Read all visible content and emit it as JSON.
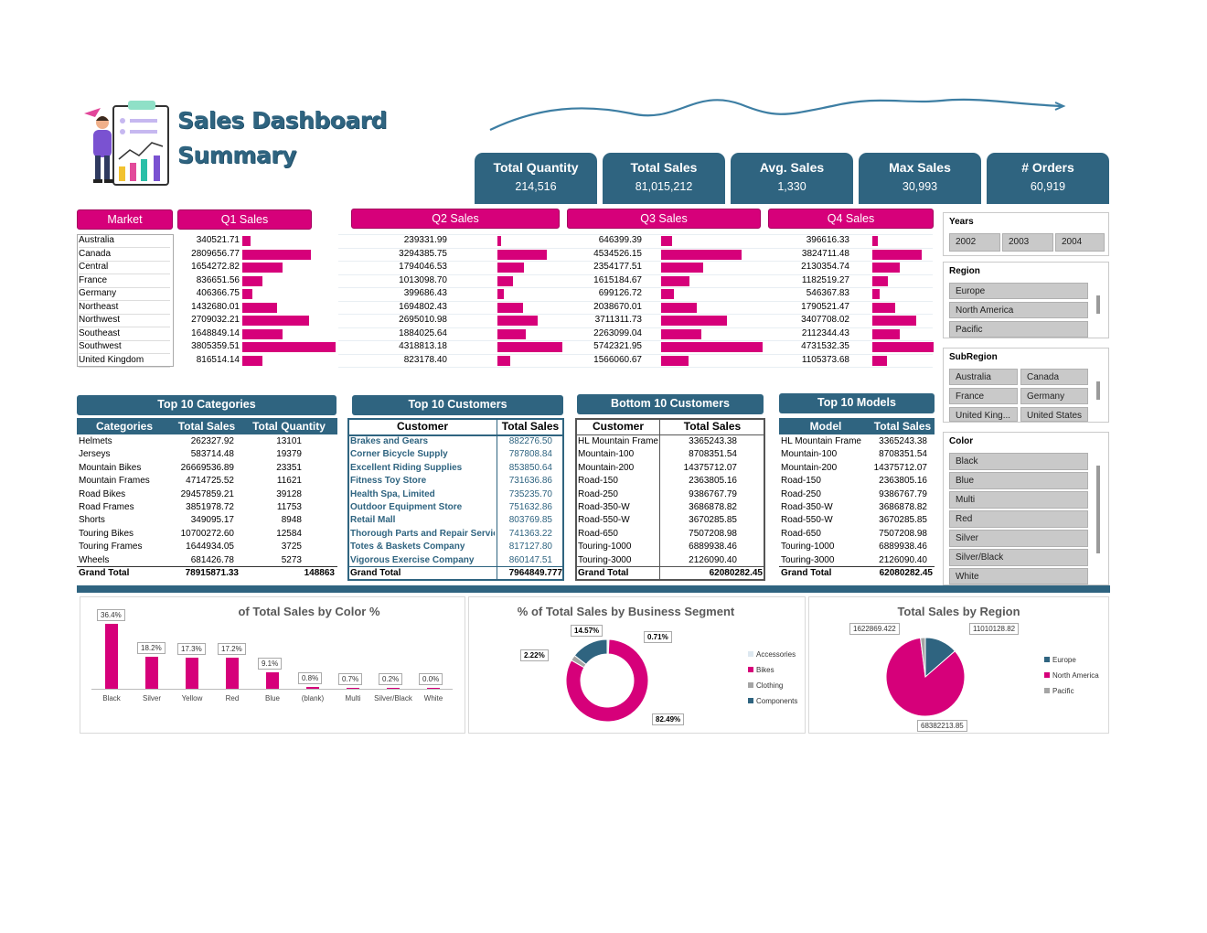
{
  "header": {
    "title_line1": "Sales Dashboard",
    "title_line2": "Summary"
  },
  "kpis": [
    {
      "label": "Total Quantity",
      "value": "214,516"
    },
    {
      "label": "Total Sales",
      "value": "81,015,212"
    },
    {
      "label": "Avg. Sales",
      "value": "1,330"
    },
    {
      "label": "Max Sales",
      "value": "30,993"
    },
    {
      "label": "# Orders",
      "value": "60,919"
    }
  ],
  "quarterly": {
    "headers": {
      "market": "Market",
      "q1": "Q1 Sales",
      "q2": "Q2 Sales",
      "q3": "Q3 Sales",
      "q4": "Q4 Sales"
    },
    "markets": [
      "Australia",
      "Canada",
      "Central",
      "France",
      "Germany",
      "Northeast",
      "Northwest",
      "Southeast",
      "Southwest",
      "United Kingdom"
    ],
    "q1": [
      "340521.71",
      "2809656.77",
      "1654272.82",
      "836651.56",
      "406366.75",
      "1432680.01",
      "2709032.21",
      "1648849.14",
      "3805359.51",
      "816514.14"
    ],
    "q2": [
      "239331.99",
      "3294385.75",
      "1794046.53",
      "1013098.70",
      "399686.43",
      "1694802.43",
      "2695010.98",
      "1884025.64",
      "4318813.18",
      "823178.40"
    ],
    "q3": [
      "646399.39",
      "4534526.15",
      "2354177.51",
      "1615184.67",
      "699126.72",
      "2038670.01",
      "3711311.73",
      "2263099.04",
      "5742321.95",
      "1566060.67"
    ],
    "q4": [
      "396616.33",
      "3824711.48",
      "2130354.74",
      "1182519.27",
      "546367.83",
      "1790521.47",
      "3407708.02",
      "2112344.43",
      "4731532.35",
      "1105373.68"
    ]
  },
  "slicers": {
    "years": {
      "title": "Years",
      "items": [
        "2002",
        "2003",
        "2004"
      ]
    },
    "region": {
      "title": "Region",
      "items": [
        "Europe",
        "North America",
        "Pacific"
      ]
    },
    "subregion": {
      "title": "SubRegion",
      "items": [
        "Australia",
        "Canada",
        "France",
        "Germany",
        "United King...",
        "United States"
      ]
    },
    "color": {
      "title": "Color",
      "items": [
        "Black",
        "Blue",
        "Multi",
        "Red",
        "Silver",
        "Silver/Black",
        "White"
      ]
    }
  },
  "top_categories": {
    "title": "Top 10 Categories",
    "columns": [
      "Categories",
      "Total Sales",
      "Total Quantity"
    ],
    "rows": [
      [
        "Helmets",
        "262327.92",
        "13101"
      ],
      [
        "Jerseys",
        "583714.48",
        "19379"
      ],
      [
        "Mountain Bikes",
        "26669536.89",
        "23351"
      ],
      [
        "Mountain Frames",
        "4714725.52",
        "11621"
      ],
      [
        "Road Bikes",
        "29457859.21",
        "39128"
      ],
      [
        "Road Frames",
        "3851978.72",
        "11753"
      ],
      [
        "Shorts",
        "349095.17",
        "8948"
      ],
      [
        "Touring Bikes",
        "10700272.60",
        "12584"
      ],
      [
        "Touring Frames",
        "1644934.05",
        "3725"
      ],
      [
        "Wheels",
        "681426.78",
        "5273"
      ]
    ],
    "total": [
      "Grand Total",
      "78915871.33",
      "148863"
    ]
  },
  "top_customers": {
    "title": "Top 10 Customers",
    "columns": [
      "Customer",
      "Total Sales"
    ],
    "rows": [
      [
        "Brakes and Gears",
        "882276.50"
      ],
      [
        "Corner Bicycle Supply",
        "787808.84"
      ],
      [
        "Excellent Riding Supplies",
        "853850.64"
      ],
      [
        "Fitness Toy Store",
        "731636.86"
      ],
      [
        "Health Spa, Limited",
        "735235.70"
      ],
      [
        "Outdoor Equipment Store",
        "751632.86"
      ],
      [
        "Retail Mall",
        "803769.85"
      ],
      [
        "Thorough Parts and Repair Services",
        "741363.22"
      ],
      [
        "Totes & Baskets Company",
        "817127.80"
      ],
      [
        "Vigorous Exercise Company",
        "860147.51"
      ]
    ],
    "total": [
      "Grand Total",
      "7964849.777"
    ]
  },
  "bottom_customers": {
    "title": "Bottom 10 Customers",
    "columns": [
      "Customer",
      "Total Sales"
    ],
    "rows": [
      [
        "HL Mountain Frame",
        "3365243.38"
      ],
      [
        "Mountain-100",
        "8708351.54"
      ],
      [
        "Mountain-200",
        "14375712.07"
      ],
      [
        "Road-150",
        "2363805.16"
      ],
      [
        "Road-250",
        "9386767.79"
      ],
      [
        "Road-350-W",
        "3686878.82"
      ],
      [
        "Road-550-W",
        "3670285.85"
      ],
      [
        "Road-650",
        "7507208.98"
      ],
      [
        "Touring-1000",
        "6889938.46"
      ],
      [
        "Touring-3000",
        "2126090.40"
      ]
    ],
    "total": [
      "Grand Total",
      "62080282.45"
    ]
  },
  "top_models": {
    "title": "Top 10 Models",
    "columns": [
      "Model",
      "Total Sales"
    ],
    "rows": [
      [
        "HL Mountain Frame",
        "3365243.38"
      ],
      [
        "Mountain-100",
        "8708351.54"
      ],
      [
        "Mountain-200",
        "14375712.07"
      ],
      [
        "Road-150",
        "2363805.16"
      ],
      [
        "Road-250",
        "9386767.79"
      ],
      [
        "Road-350-W",
        "3686878.82"
      ],
      [
        "Road-550-W",
        "3670285.85"
      ],
      [
        "Road-650",
        "7507208.98"
      ],
      [
        "Touring-1000",
        "6889938.46"
      ],
      [
        "Touring-3000",
        "2126090.40"
      ]
    ],
    "total": [
      "Grand Total",
      "62080282.45"
    ]
  },
  "colors": {
    "pink": "#d6007a",
    "blue": "#2f6480",
    "gray": "#a5a5a5",
    "light": "#dde8f0"
  },
  "chart_data": [
    {
      "type": "bar",
      "title": "of Total Sales by Color %",
      "categories": [
        "Black",
        "Silver",
        "Yellow",
        "Red",
        "Blue",
        "(blank)",
        "Multi",
        "Silver/Black",
        "White"
      ],
      "values": [
        36.4,
        18.2,
        17.3,
        17.2,
        9.1,
        0.8,
        0.7,
        0.2,
        0.0
      ],
      "labels": [
        "36.4%",
        "18.2%",
        "17.3%",
        "17.2%",
        "9.1%",
        "0.8%",
        "0.7%",
        "0.2%",
        "0.0%"
      ],
      "ylim": [
        0,
        40
      ]
    },
    {
      "type": "pie",
      "title": "% of Total Sales by Business Segment",
      "categories": [
        "Accessories",
        "Bikes",
        "Clothing",
        "Components"
      ],
      "values": [
        0.71,
        82.49,
        2.22,
        14.57
      ],
      "labels": [
        "0.71%",
        "82.49%",
        "2.22%",
        "14.57%"
      ],
      "legend": "right"
    },
    {
      "type": "pie",
      "title": "Total Sales by Region",
      "categories": [
        "Europe",
        "North America",
        "Pacific"
      ],
      "values": [
        11010128.82,
        68382213.85,
        1622869.422
      ],
      "labels": [
        "11010128.82",
        "68382213.85",
        "1622869.422"
      ],
      "legend": "right"
    }
  ]
}
